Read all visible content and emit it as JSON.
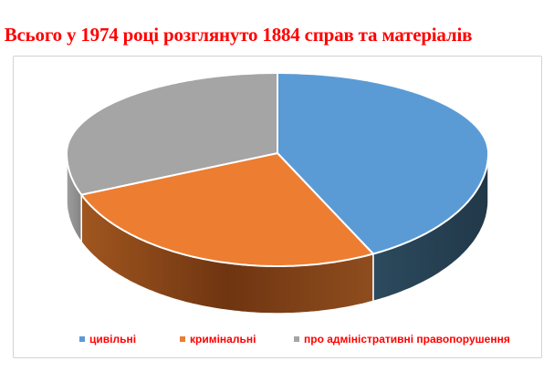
{
  "title": {
    "text": "Всього у 1974 році розглянуто 1884 справ та матеріалів",
    "color": "#FF0000"
  },
  "panel": {
    "background": "#FFFFFF",
    "border_color": "#D3D3D3"
  },
  "legend_text_color": "#FF0000",
  "chart_data": {
    "type": "pie",
    "style": "3d",
    "title": "Всього у 1974 році розглянуто 1884 справ та матеріалів",
    "total_cases": 1884,
    "year": "1974",
    "legend_position": "bottom",
    "start_angle_deg": 0,
    "slices": [
      {
        "label": "цивільні",
        "pct": 42.5,
        "color": "#5B9BD5",
        "side_gradient": [
          "#2C4A5E",
          "#213848"
        ]
      },
      {
        "label": "кримінальні",
        "pct": 26.5,
        "color": "#ED7D31",
        "side_gradient": [
          "#A0561F",
          "#6F3511",
          "#8F4D1E"
        ]
      },
      {
        "label": "про адміністративні правопорушення",
        "pct": 31,
        "color": "#A5A5A5",
        "side_gradient": [
          "#9E9E9E",
          "#848484"
        ]
      }
    ]
  }
}
